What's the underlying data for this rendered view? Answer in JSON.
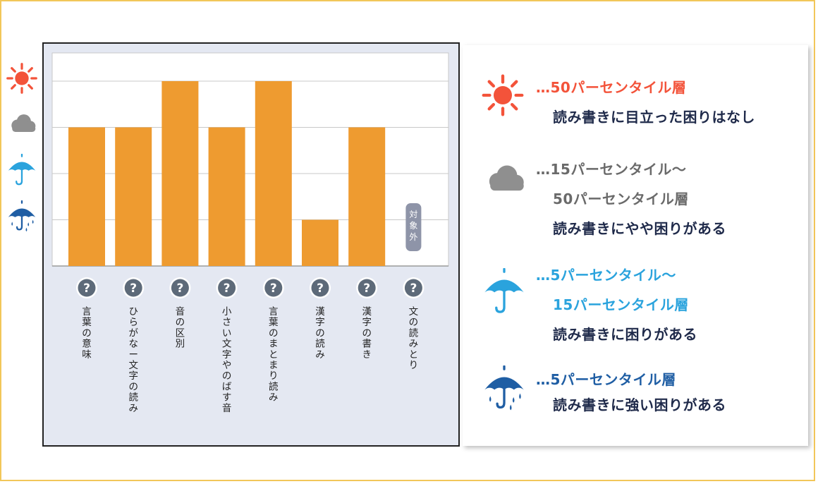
{
  "colors": {
    "bar": "#ee9b30",
    "sun": "#f3533a",
    "cloud": "#8f8f8f",
    "light_umbrella": "#2aa3dd",
    "dark_umbrella": "#1f5ea4",
    "text_dark": "#1f2a4a",
    "gray_text": "#6a6a6a",
    "help_icon": "#5d6a79",
    "na_badge": "#8e94a8"
  },
  "level_icons": [
    "sun-icon",
    "cloud-icon",
    "umbrella-icon",
    "umbrella-rain-icon"
  ],
  "chart_data": {
    "type": "bar",
    "categories": [
      "言葉の意味",
      "ひらがなー文字の読み",
      "音の区別",
      "小さい文字やのばす音",
      "言葉のまとまり読み",
      "漢字の読み",
      "漢字の書き",
      "文の読みとり"
    ],
    "values": [
      3,
      3,
      4,
      3,
      4,
      1,
      3,
      null
    ],
    "ylim": [
      0,
      4.5
    ],
    "grid": true,
    "na_label": "対象外",
    "help_glyph": "?"
  },
  "legend": [
    {
      "icon": "sun-icon",
      "lines": [
        {
          "text": "…50パーセンタイル層",
          "color": "#f3533a"
        },
        {
          "text": "読み書きに目立った困りはなし",
          "color": "#1f2a4a"
        }
      ]
    },
    {
      "icon": "cloud-icon",
      "lines": [
        {
          "text": "…15パーセンタイル～",
          "color": "#6a6a6a"
        },
        {
          "text": "50パーセンタイル層",
          "color": "#6a6a6a"
        },
        {
          "text": "読み書きにやや困りがある",
          "color": "#1f2a4a"
        }
      ]
    },
    {
      "icon": "umbrella-icon",
      "lines": [
        {
          "text": "…5パーセンタイル～",
          "color": "#2aa3dd"
        },
        {
          "text": "15パーセンタイル層",
          "color": "#2aa3dd"
        },
        {
          "text": "読み書きに困りがある",
          "color": "#1f2a4a"
        }
      ]
    },
    {
      "icon": "umbrella-rain-icon",
      "lines": [
        {
          "text": "…5パーセンタイル層",
          "color": "#1f5ea4"
        },
        {
          "text": "読み書きに強い困りがある",
          "color": "#1f2a4a"
        }
      ]
    }
  ]
}
